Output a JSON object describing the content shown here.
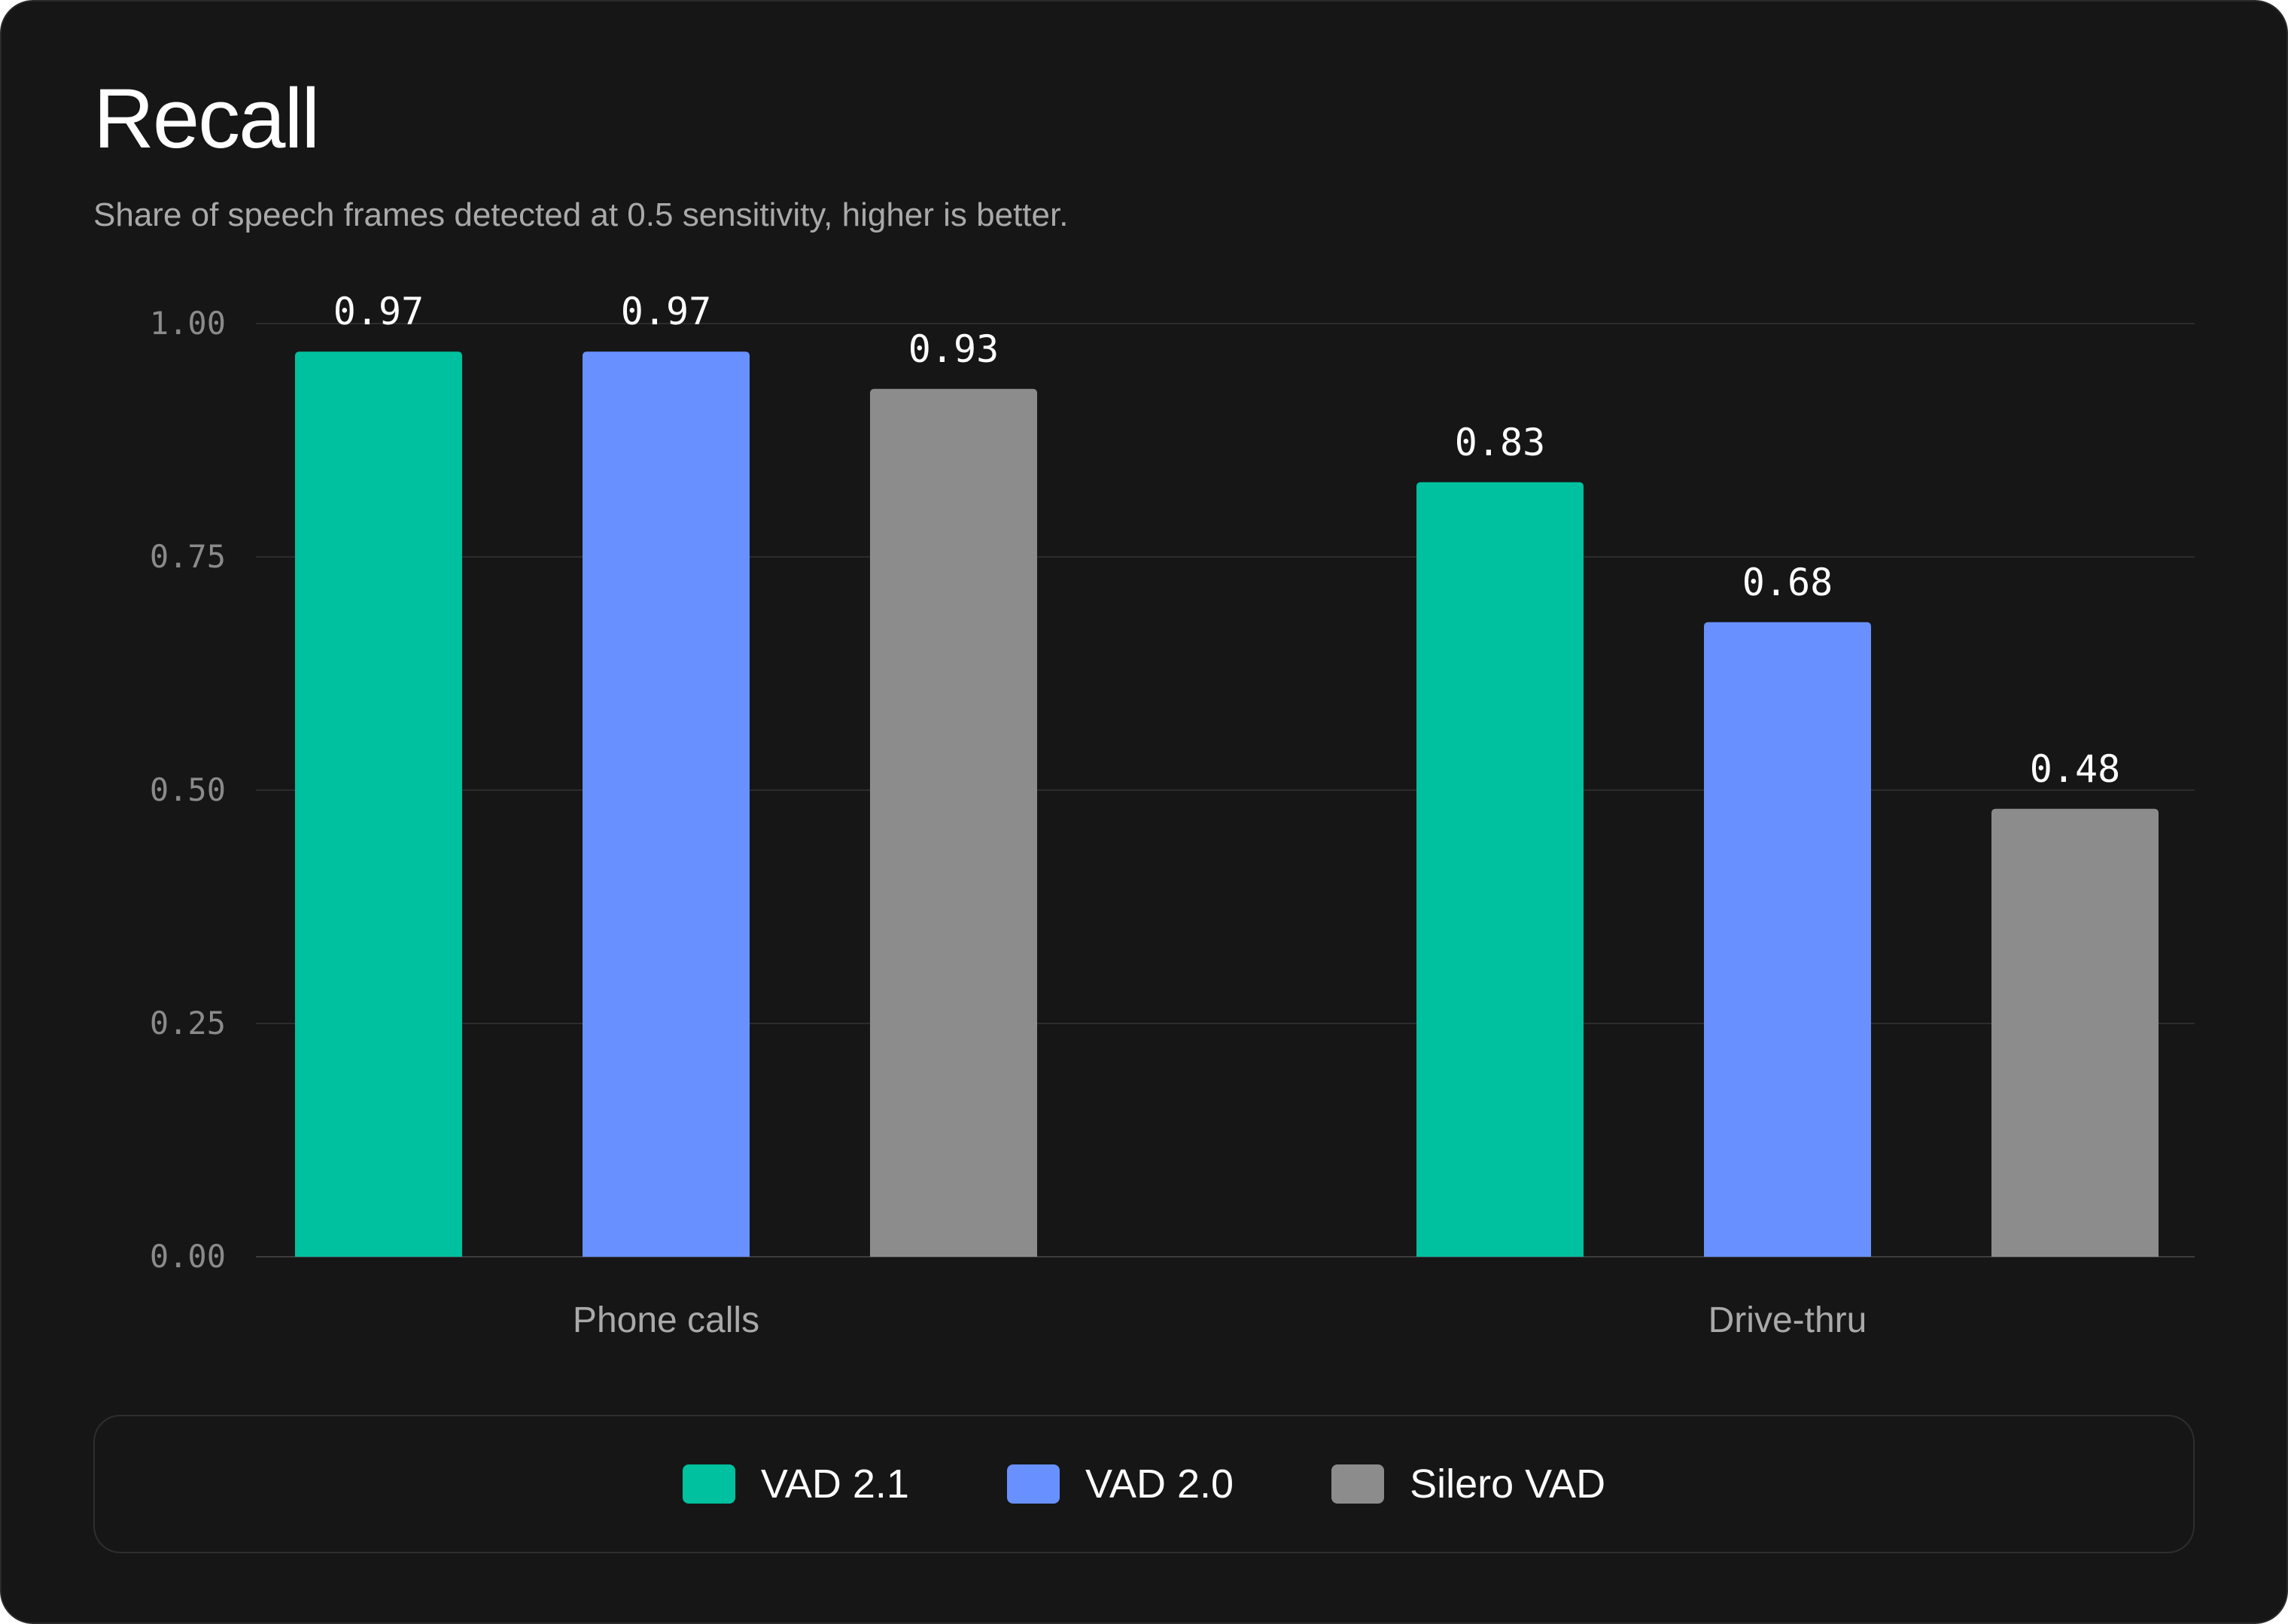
{
  "chart_data": {
    "type": "bar",
    "title": "Recall",
    "subtitle": "Share of speech frames detected at 0.5 sensitivity, higher is better.",
    "xlabel": "",
    "ylabel": "",
    "categories": [
      "Phone calls",
      "Drive-thru"
    ],
    "series": [
      {
        "name": "VAD 2.1",
        "color": "#00C19F",
        "values": [
          0.97,
          0.83
        ]
      },
      {
        "name": "VAD 2.0",
        "color": "#6891FF",
        "values": [
          0.97,
          0.68
        ]
      },
      {
        "name": "Silero VAD",
        "color": "#8C8C8C",
        "values": [
          0.93,
          0.48
        ]
      }
    ],
    "value_labels": [
      [
        "0.97",
        "0.83"
      ],
      [
        "0.97",
        "0.68"
      ],
      [
        "0.93",
        "0.48"
      ]
    ],
    "ylim": [
      0,
      1
    ],
    "yticks": [
      0,
      0.25,
      0.5,
      0.75,
      1
    ],
    "ytick_labels": [
      "0.00",
      "0.25",
      "0.50",
      "0.75",
      "1.00"
    ],
    "grid": true,
    "legend_position": "bottom"
  }
}
